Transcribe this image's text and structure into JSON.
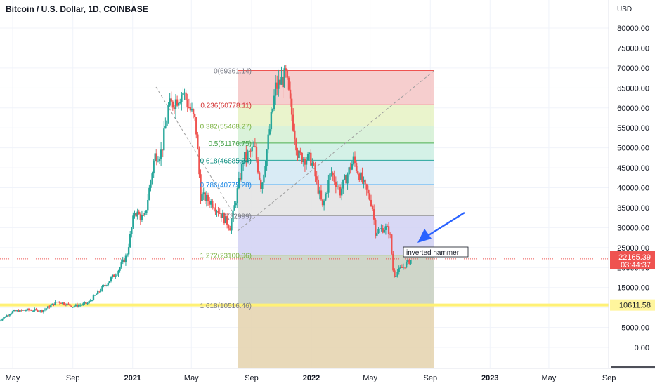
{
  "header": {
    "title": "Bitcoin / U.S. Dollar, 1D, COINBASE"
  },
  "colors": {
    "up": "#26a69a",
    "down": "#ef5350",
    "highlight": "#fff176",
    "price_label": "#ef5350",
    "support_label": "#fff59d",
    "arrow": "#2962ff"
  },
  "chart_data": {
    "type": "candlestick",
    "title": "Bitcoin / U.S. Dollar, 1D, COINBASE",
    "y_axis": {
      "unit": "USD",
      "ticks": [
        "80000.00",
        "75000.00",
        "70000.00",
        "65000.00",
        "60000.00",
        "55000.00",
        "50000.00",
        "45000.00",
        "40000.00",
        "35000.00",
        "30000.00",
        "25000.00",
        "20000.00",
        "15000.00",
        "10000.00",
        "5000.00",
        "0.00"
      ],
      "range": [
        -3000,
        86000
      ]
    },
    "x_axis": {
      "ticks": [
        "May",
        "Sep",
        "2021",
        "May",
        "Sep",
        "2022",
        "May",
        "Sep",
        "2023",
        "May",
        "Sep"
      ],
      "bold_ticks": [
        "2021",
        "2022",
        "2023"
      ]
    },
    "price_path": [
      [
        "2020-04-01",
        6500
      ],
      [
        "2020-05-01",
        9000
      ],
      [
        "2020-06-01",
        9400
      ],
      [
        "2020-07-01",
        9200
      ],
      [
        "2020-08-01",
        11500
      ],
      [
        "2020-09-01",
        10300
      ],
      [
        "2020-10-01",
        11000
      ],
      [
        "2020-11-01",
        15000
      ],
      [
        "2020-12-01",
        19000
      ],
      [
        "2020-12-20",
        23000
      ],
      [
        "2021-01-05",
        34000
      ],
      [
        "2021-01-25",
        32000
      ],
      [
        "2021-02-15",
        48000
      ],
      [
        "2021-03-01",
        49000
      ],
      [
        "2021-03-15",
        60000
      ],
      [
        "2021-04-14",
        64000
      ],
      [
        "2021-05-10",
        56000
      ],
      [
        "2021-05-20",
        38000
      ],
      [
        "2021-06-15",
        36000
      ],
      [
        "2021-07-20",
        30000
      ],
      [
        "2021-08-15",
        47000
      ],
      [
        "2021-09-07",
        50000
      ],
      [
        "2021-09-21",
        40000
      ],
      [
        "2021-10-20",
        65000
      ],
      [
        "2021-11-10",
        68000
      ],
      [
        "2021-12-05",
        48000
      ],
      [
        "2022-01-01",
        47000
      ],
      [
        "2022-01-24",
        35000
      ],
      [
        "2022-02-10",
        44000
      ],
      [
        "2022-03-01",
        39000
      ],
      [
        "2022-03-28",
        47000
      ],
      [
        "2022-04-20",
        40000
      ],
      [
        "2022-05-05",
        36000
      ],
      [
        "2022-05-12",
        29000
      ],
      [
        "2022-06-01",
        30000
      ],
      [
        "2022-06-10",
        29000
      ],
      [
        "2022-06-18",
        18000
      ],
      [
        "2022-07-01",
        19500
      ],
      [
        "2022-07-25",
        22165
      ]
    ],
    "fibonacci": {
      "levels": [
        {
          "label": "0(69361.14)",
          "value": 69361.14,
          "line_color": "#ef5350",
          "fill": "#f5c6c6",
          "text_color": "#787b86"
        },
        {
          "label": "0.236(60778.11)",
          "value": 60778.11,
          "line_color": "#e53935",
          "fill": "#e6f2c3",
          "text_color": "#d32f2f"
        },
        {
          "label": "0.382(55468.27)",
          "value": 55468.27,
          "line_color": "#8bc34a",
          "fill": "#d3f0d3",
          "text_color": "#7cb342"
        },
        {
          "label": "0.5(51176.75)",
          "value": 51176.75,
          "line_color": "#4caf50",
          "fill": "#cdeee3",
          "text_color": "#43a047"
        },
        {
          "label": "0.618(46885.24)",
          "value": 46885.24,
          "line_color": "#26a69a",
          "fill": "#d2e7f3",
          "text_color": "#00897b"
        },
        {
          "label": "0.786(40775.28)",
          "value": 40775.28,
          "line_color": "#2196f3",
          "fill": "#e3e3e3",
          "text_color": "#1e88e5"
        },
        {
          "label": "1(32999)",
          "value": 32999,
          "line_color": "#9e9e9e",
          "fill": "#d1d1f3",
          "text_color": "#787b86"
        },
        {
          "label": "1.272(23100.06)",
          "value": 23100.06,
          "line_color": "#8bc34a",
          "fill": "#c7cfc0",
          "text_color": "#7cb342"
        },
        {
          "label": "1.618(10516.46)",
          "value": 10516.46,
          "line_color": "#b0a070",
          "fill": "#e4d2ad",
          "text_color": "#787b86"
        }
      ],
      "range_bottom": -5000
    },
    "trend_lines": [
      "dashed grey diagonal from 2021 high",
      "dashed grey diagonal from 32999 up to 69361.14"
    ],
    "annotations": [
      {
        "text": "inverted hammer",
        "type": "callout"
      }
    ],
    "horizontal_line": {
      "value": 10611.58,
      "label": "10611.58",
      "color": "#fff176"
    },
    "current_price": {
      "value": 22165.39,
      "label": "22165.39",
      "countdown": "03:44:37"
    }
  }
}
